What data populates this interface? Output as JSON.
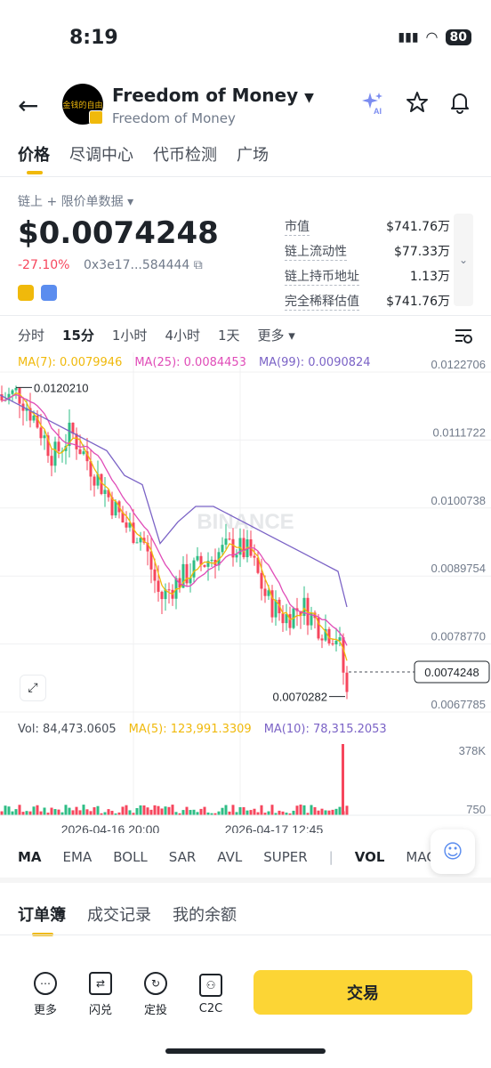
{
  "status_bar": {
    "time": "8:19",
    "battery": "80"
  },
  "header": {
    "title": "Freedom of Money",
    "subtitle": "Freedom of Money",
    "logo_text": "金钱的自由"
  },
  "tabs": [
    "价格",
    "尽调中心",
    "代币检测",
    "广场"
  ],
  "price_section": {
    "data_source": "链上 + 限价单数据 ▾",
    "price": "$0.0074248",
    "change": "-27.10%",
    "address": "0x3e17...584444 ⧉"
  },
  "stats": [
    {
      "label": "市值",
      "value": "$741.76万"
    },
    {
      "label": "链上流动性",
      "value": "$77.33万"
    },
    {
      "label": "链上持币地址",
      "value": "1.13万"
    },
    {
      "label": "完全稀释估值",
      "value": "$741.76万"
    }
  ],
  "timeframes": [
    "分时",
    "15分",
    "1小时",
    "4小时",
    "1天",
    "更多 ▾"
  ],
  "ma_legend": {
    "ma7": "MA(7): 0.0079946",
    "ma25": "MA(25): 0.0084453",
    "ma99": "MA(99): 0.0090824"
  },
  "chart_data": {
    "type": "candlestick",
    "y_ticks": [
      "0.0122706",
      "0.0111722",
      "0.0100738",
      "0.0089754",
      "0.0078770",
      "0.0067785"
    ],
    "ylim": [
      0.0067785,
      0.0122706
    ],
    "high_label": "0.0120210",
    "low_label": "0.0070282",
    "current_price": "0.0074248",
    "x_ticks": [
      "2026-04-16 20:00",
      "2026-04-17 12:45"
    ],
    "watermark": "BINANCE",
    "vol_ticks": [
      "378K",
      "750"
    ],
    "colors": {
      "up": "#2ebd85",
      "down": "#f6465d",
      "ma7": "#f0b90b",
      "ma25": "#e04cb8",
      "ma99": "#7b63c6"
    }
  },
  "vol_legend": {
    "vol": "Vol: 84,473.0605",
    "ma5": "MA(5): 123,991.3309",
    "ma10": "MA(10): 78,315.2053"
  },
  "indicators": [
    "MA",
    "EMA",
    "BOLL",
    "SAR",
    "AVL",
    "SUPER",
    "VOL",
    "MACD"
  ],
  "sub_tabs": [
    "订单簿",
    "成交记录",
    "我的余额"
  ],
  "bottom_bar": {
    "items": [
      "更多",
      "闪兑",
      "定投",
      "C2C"
    ],
    "trade": "交易"
  }
}
